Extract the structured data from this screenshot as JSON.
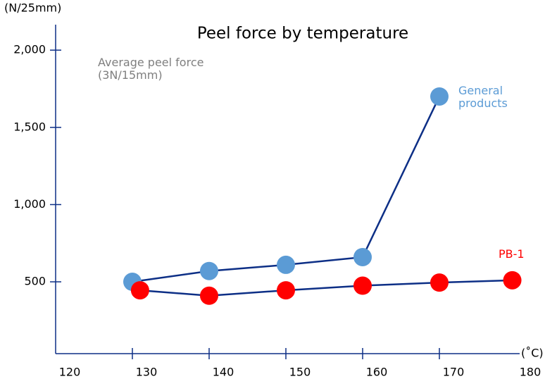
{
  "chart_data": {
    "type": "line",
    "title": "Peel force by temperature",
    "y_axis_label": "(N/25mm)",
    "x_axis_label": "(˚C)",
    "annotation": "Average peel force (3N/15mm)",
    "line_color": "#0d2f86",
    "xlim": [
      120,
      180
    ],
    "xticks": [
      120,
      130,
      140,
      150,
      160,
      170,
      180
    ],
    "ylim": [
      35,
      2165
    ],
    "yticks": [
      {
        "value": 500,
        "label": "500"
      },
      {
        "value": 1000,
        "label": "1,000"
      },
      {
        "value": 1500,
        "label": "1,500"
      },
      {
        "value": 2000,
        "label": "2,000"
      }
    ],
    "series": [
      {
        "name": "General products",
        "color": "#5b9bd5",
        "x": [
          130,
          140,
          150,
          160,
          170
        ],
        "values": [
          500,
          570,
          610,
          660,
          1700
        ]
      },
      {
        "name": "PB-1",
        "color": "#ff0000",
        "x": [
          131,
          140,
          150,
          160,
          170,
          179.5
        ],
        "values": [
          445,
          410,
          445,
          475,
          495,
          510
        ]
      }
    ]
  }
}
